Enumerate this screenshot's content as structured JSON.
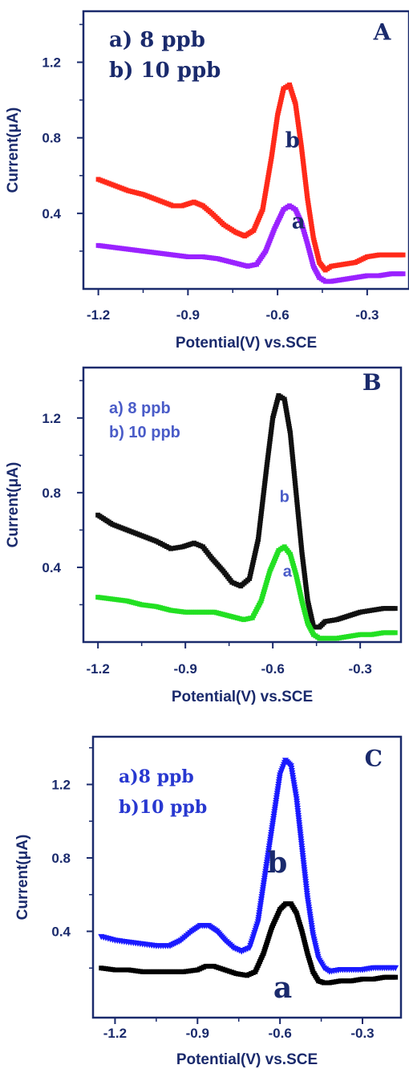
{
  "chart_data": [
    {
      "panel": "A",
      "type": "scatter",
      "xlabel": "Potential(V) vs.SCE",
      "ylabel": "Current(μA)",
      "xlim": [
        -1.25,
        -0.16
      ],
      "ylim": [
        0.0,
        1.47
      ],
      "x_ticks": [
        -1.2,
        -0.9,
        -0.6,
        -0.3
      ],
      "x_tick_labels": [
        "-1.2",
        "-0.9",
        "-0.6",
        "-0.3"
      ],
      "y_ticks": [
        0.4,
        0.8,
        1.2
      ],
      "y_tick_labels": [
        "0.4",
        "0.8",
        "1.2"
      ],
      "legend_lines": [
        "a) 8 ppb",
        "b) 10 ppb"
      ],
      "legend_style": {
        "color": "#1a2a6c",
        "font": "serif",
        "size": 26
      },
      "series": [
        {
          "key": "b",
          "label": "b",
          "color": "#ff2a1a",
          "marker": "square",
          "x": [
            -1.2,
            -1.15,
            -1.1,
            -1.05,
            -1.0,
            -0.95,
            -0.92,
            -0.88,
            -0.85,
            -0.82,
            -0.78,
            -0.74,
            -0.71,
            -0.68,
            -0.65,
            -0.62,
            -0.6,
            -0.58,
            -0.56,
            -0.54,
            -0.52,
            -0.5,
            -0.48,
            -0.46,
            -0.44,
            -0.42,
            -0.38,
            -0.34,
            -0.3,
            -0.26,
            -0.22,
            -0.18
          ],
          "y": [
            0.58,
            0.55,
            0.52,
            0.5,
            0.47,
            0.44,
            0.44,
            0.46,
            0.44,
            0.4,
            0.34,
            0.3,
            0.28,
            0.31,
            0.42,
            0.7,
            0.92,
            1.06,
            1.08,
            0.98,
            0.75,
            0.48,
            0.27,
            0.14,
            0.1,
            0.12,
            0.13,
            0.14,
            0.17,
            0.18,
            0.18,
            0.18
          ]
        },
        {
          "key": "a",
          "label": "a",
          "color": "#9a22ff",
          "marker": "square",
          "x": [
            -1.2,
            -1.15,
            -1.1,
            -1.05,
            -1.0,
            -0.95,
            -0.9,
            -0.85,
            -0.8,
            -0.75,
            -0.7,
            -0.67,
            -0.64,
            -0.61,
            -0.58,
            -0.56,
            -0.54,
            -0.52,
            -0.5,
            -0.48,
            -0.46,
            -0.44,
            -0.42,
            -0.38,
            -0.34,
            -0.3,
            -0.26,
            -0.22,
            -0.18
          ],
          "y": [
            0.23,
            0.22,
            0.21,
            0.2,
            0.19,
            0.18,
            0.17,
            0.17,
            0.16,
            0.14,
            0.12,
            0.13,
            0.2,
            0.32,
            0.42,
            0.44,
            0.42,
            0.35,
            0.24,
            0.12,
            0.06,
            0.04,
            0.04,
            0.05,
            0.06,
            0.07,
            0.07,
            0.08,
            0.08
          ]
        }
      ],
      "annotations": [
        {
          "text": "A",
          "x": -0.25,
          "y": 1.32,
          "color": "#1a2a6c",
          "font": "serif",
          "size": 28
        },
        {
          "text": "b",
          "x": -0.55,
          "y": 0.75,
          "color": "#1a2a6c",
          "font": "serif",
          "size": 26
        },
        {
          "text": "a",
          "x": -0.53,
          "y": 0.32,
          "color": "#1a2a6c",
          "font": "serif",
          "size": 26
        }
      ]
    },
    {
      "panel": "B",
      "type": "scatter",
      "xlabel": "Potential(V) vs.SCE",
      "ylabel": "Current(μA)",
      "xlim": [
        -1.25,
        -0.16
      ],
      "ylim": [
        0.0,
        1.47
      ],
      "x_ticks": [
        -1.2,
        -0.9,
        -0.6,
        -0.3
      ],
      "x_tick_labels": [
        "-1.2",
        "-0.9",
        "-0.6",
        "-0.3"
      ],
      "y_ticks": [
        0.4,
        0.8,
        1.2
      ],
      "y_tick_labels": [
        "0.4",
        "0.8",
        "1.2"
      ],
      "legend_lines": [
        "a) 8 ppb",
        "b) 10 ppb"
      ],
      "legend_style": {
        "color": "#4a5cc8",
        "font": "sans",
        "size": 20
      },
      "series": [
        {
          "key": "b",
          "label": "b",
          "color": "#111111",
          "marker": "square",
          "x": [
            -1.2,
            -1.15,
            -1.1,
            -1.05,
            -1.0,
            -0.95,
            -0.91,
            -0.87,
            -0.84,
            -0.81,
            -0.77,
            -0.74,
            -0.71,
            -0.68,
            -0.65,
            -0.62,
            -0.6,
            -0.58,
            -0.56,
            -0.54,
            -0.52,
            -0.5,
            -0.48,
            -0.46,
            -0.44,
            -0.42,
            -0.38,
            -0.34,
            -0.3,
            -0.26,
            -0.22,
            -0.18
          ],
          "y": [
            0.68,
            0.63,
            0.6,
            0.57,
            0.54,
            0.5,
            0.51,
            0.53,
            0.51,
            0.45,
            0.38,
            0.32,
            0.3,
            0.34,
            0.55,
            0.95,
            1.2,
            1.32,
            1.3,
            1.12,
            0.8,
            0.48,
            0.22,
            0.08,
            0.08,
            0.11,
            0.12,
            0.14,
            0.16,
            0.17,
            0.18,
            0.18
          ]
        },
        {
          "key": "a",
          "label": "a",
          "color": "#22e022",
          "marker": "square",
          "x": [
            -1.2,
            -1.15,
            -1.1,
            -1.05,
            -1.0,
            -0.95,
            -0.9,
            -0.85,
            -0.8,
            -0.75,
            -0.7,
            -0.67,
            -0.64,
            -0.61,
            -0.58,
            -0.56,
            -0.54,
            -0.52,
            -0.5,
            -0.48,
            -0.46,
            -0.44,
            -0.42,
            -0.38,
            -0.34,
            -0.3,
            -0.26,
            -0.22,
            -0.18
          ],
          "y": [
            0.24,
            0.23,
            0.22,
            0.2,
            0.19,
            0.17,
            0.16,
            0.16,
            0.16,
            0.14,
            0.12,
            0.13,
            0.22,
            0.38,
            0.49,
            0.51,
            0.47,
            0.36,
            0.22,
            0.1,
            0.04,
            0.02,
            0.02,
            0.02,
            0.03,
            0.04,
            0.04,
            0.05,
            0.05
          ]
        }
      ],
      "annotations": [
        {
          "text": "B",
          "x": -0.26,
          "y": 1.35,
          "color": "#1a2a6c",
          "font": "serif",
          "size": 28
        },
        {
          "text": "b",
          "x": -0.56,
          "y": 0.75,
          "color": "#4a5cc8",
          "font": "sans",
          "size": 20
        },
        {
          "text": "a",
          "x": -0.55,
          "y": 0.35,
          "color": "#4a5cc8",
          "font": "sans",
          "size": 20
        }
      ]
    },
    {
      "panel": "C",
      "type": "scatter",
      "xlabel": "Potential(V) vs.SCE",
      "ylabel": "Current(μA)",
      "xlim": [
        -1.28,
        -0.16
      ],
      "ylim": [
        -0.07,
        1.46
      ],
      "x_ticks": [
        -1.2,
        -0.9,
        -0.6,
        -0.3
      ],
      "x_tick_labels": [
        "-1.2",
        "-0.9",
        "-0.6",
        "-0.3"
      ],
      "y_ticks": [
        0.4,
        0.8,
        1.2
      ],
      "y_tick_labels": [
        "0.4",
        "0.8",
        "1.2"
      ],
      "legend_lines": [
        "a)8 ppb",
        "b)10 ppb"
      ],
      "legend_style": {
        "color": "#2838d0",
        "font": "serif",
        "size": 22
      },
      "series": [
        {
          "key": "b",
          "label": "b",
          "color": "#1a1aff",
          "marker": "triangle-down",
          "x": [
            -1.25,
            -1.2,
            -1.15,
            -1.1,
            -1.05,
            -1.0,
            -0.96,
            -0.92,
            -0.89,
            -0.86,
            -0.83,
            -0.8,
            -0.77,
            -0.74,
            -0.71,
            -0.68,
            -0.65,
            -0.62,
            -0.6,
            -0.58,
            -0.56,
            -0.54,
            -0.52,
            -0.5,
            -0.48,
            -0.46,
            -0.44,
            -0.42,
            -0.38,
            -0.34,
            -0.3,
            -0.26,
            -0.22,
            -0.18
          ],
          "y": [
            0.37,
            0.35,
            0.34,
            0.33,
            0.32,
            0.32,
            0.35,
            0.4,
            0.43,
            0.43,
            0.4,
            0.35,
            0.31,
            0.29,
            0.31,
            0.45,
            0.75,
            1.05,
            1.25,
            1.33,
            1.3,
            1.12,
            0.85,
            0.58,
            0.38,
            0.25,
            0.2,
            0.18,
            0.19,
            0.19,
            0.19,
            0.2,
            0.2,
            0.2
          ]
        },
        {
          "key": "a",
          "label": "a",
          "color": "#000000",
          "marker": "square",
          "x": [
            -1.25,
            -1.2,
            -1.15,
            -1.1,
            -1.05,
            -1.0,
            -0.95,
            -0.9,
            -0.87,
            -0.84,
            -0.8,
            -0.76,
            -0.72,
            -0.69,
            -0.66,
            -0.63,
            -0.6,
            -0.58,
            -0.56,
            -0.54,
            -0.52,
            -0.5,
            -0.48,
            -0.46,
            -0.44,
            -0.42,
            -0.38,
            -0.34,
            -0.3,
            -0.26,
            -0.22,
            -0.18
          ],
          "y": [
            0.2,
            0.19,
            0.19,
            0.18,
            0.18,
            0.18,
            0.18,
            0.19,
            0.21,
            0.21,
            0.19,
            0.17,
            0.16,
            0.18,
            0.28,
            0.42,
            0.52,
            0.55,
            0.55,
            0.5,
            0.4,
            0.28,
            0.18,
            0.13,
            0.12,
            0.12,
            0.13,
            0.13,
            0.14,
            0.14,
            0.15,
            0.15
          ]
        }
      ],
      "annotations": [
        {
          "text": "C",
          "x": -0.26,
          "y": 1.3,
          "color": "#1a2a6c",
          "font": "serif",
          "size": 28
        },
        {
          "text": "b",
          "x": -0.61,
          "y": 0.72,
          "color": "#1a2a6c",
          "font": "serif",
          "size": 36
        },
        {
          "text": "a",
          "x": -0.59,
          "y": 0.04,
          "color": "#1a2a6c",
          "font": "serif",
          "size": 36
        }
      ]
    }
  ],
  "colors": {
    "axis": "#1a2a6c",
    "text": "#1a2a6c"
  }
}
